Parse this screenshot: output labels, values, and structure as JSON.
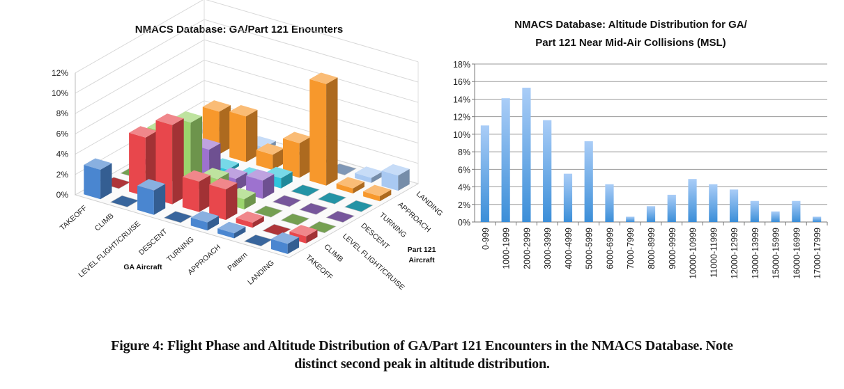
{
  "chart_data": [
    {
      "type": "bar3d",
      "title": "NMACS Database: GA/Part 121 Enounters",
      "x_axis_label": "GA Aircraft",
      "depth_axis_label": "Part 121 Aircraft",
      "x_categories": [
        "TAKEOFF",
        "CLIMB",
        "LEVEL FLIGHT/CRUISE",
        "DESCENT",
        "TURNING",
        "APPROACH",
        "Pattern",
        "LANDING"
      ],
      "depth_categories": [
        "TAKEOFF",
        "CLIMB",
        "LEVEL FLIGHT/CRUISE",
        "DESCENT",
        "TURNING",
        "APPROACH",
        "LANDING"
      ],
      "y_ticks": [
        "0%",
        "2%",
        "4%",
        "6%",
        "8%",
        "10%",
        "12%"
      ],
      "ylim": [
        0,
        12
      ],
      "unit": "%",
      "series_colors": [
        "#4a86d0",
        "#e8474c",
        "#9bd46c",
        "#9d72cf",
        "#2ec4dc",
        "#f7982c",
        "#a9c9f2"
      ],
      "values": [
        [
          2.9,
          0,
          2.4,
          0,
          0.8,
          0.5,
          0,
          1.0
        ],
        [
          0,
          5.8,
          7.8,
          3.0,
          3.0,
          0.5,
          0,
          0.7
        ],
        [
          0,
          5.3,
          7.0,
          2.2,
          1.0,
          0,
          0,
          0
        ],
        [
          0,
          4.5,
          3.3,
          1.2,
          1.8,
          0,
          0,
          0
        ],
        [
          0,
          0.8,
          0.3,
          0.2,
          1.0,
          0,
          0,
          0
        ],
        [
          0,
          4.2,
          4.5,
          1.5,
          3.4,
          10.0,
          0.5,
          0.5
        ],
        [
          0.4,
          0,
          0.4,
          0,
          0,
          0,
          0.5,
          1.5
        ]
      ],
      "grid": true
    },
    {
      "type": "bar",
      "title_lines": [
        "NMACS Database: Altitude Distribution for GA/",
        "Part 121 Near Mid-Air Collisions (MSL)"
      ],
      "categories": [
        "0-999",
        "1000-1999",
        "2000-2999",
        "3000-3999",
        "4000-4999",
        "5000-5999",
        "6000-6999",
        "7000-7999",
        "8000-8999",
        "9000-9999",
        "10000-10999",
        "11000-11999",
        "12000-12999",
        "13000-13999",
        "15000-15999",
        "16000-16999",
        "17000-17999"
      ],
      "values": [
        11.0,
        14.1,
        15.3,
        11.6,
        5.5,
        9.2,
        4.3,
        0.6,
        1.8,
        3.1,
        4.9,
        4.3,
        3.7,
        2.4,
        1.2,
        2.4,
        0.6
      ],
      "y_ticks": [
        "0%",
        "2%",
        "4%",
        "6%",
        "8%",
        "10%",
        "12%",
        "14%",
        "16%",
        "18%"
      ],
      "ylim": [
        0,
        18
      ],
      "unit": "%",
      "bar_color_top": "#aacdf7",
      "bar_color_bottom": "#3b8ed8",
      "grid": true
    }
  ],
  "caption": {
    "line1": "Figure 4: Flight Phase and Altitude Distribution of GA/Part 121 Encounters in the NMACS Database. Note",
    "line2": "distinct second peak in altitude distribution."
  }
}
